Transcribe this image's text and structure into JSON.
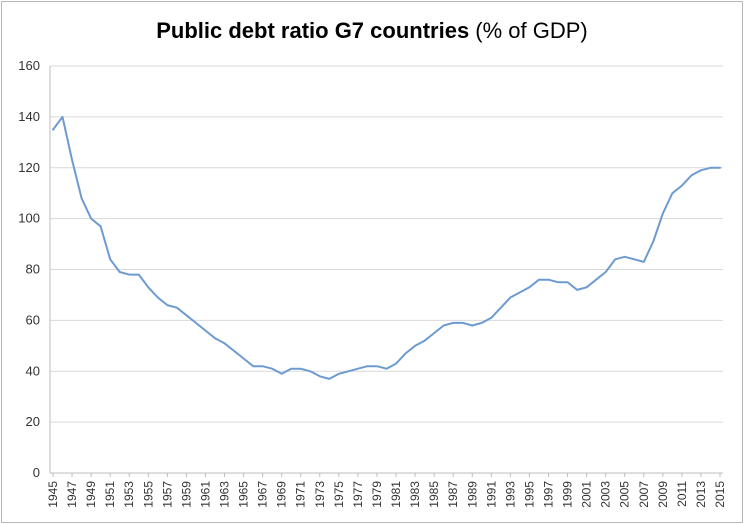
{
  "chart_data": {
    "type": "line",
    "title_bold": "Public debt ratio G7 countries",
    "title_rest": " (% of GDP)",
    "ylim": [
      0,
      160
    ],
    "y_ticks": [
      "0",
      "20",
      "40",
      "60",
      "80",
      "100",
      "120",
      "140",
      "160"
    ],
    "x_ticks": [
      "1945",
      "1947",
      "1949",
      "1951",
      "1953",
      "1955",
      "1957",
      "1959",
      "1961",
      "1963",
      "1965",
      "1967",
      "1969",
      "1971",
      "1973",
      "1975",
      "1977",
      "1979",
      "1981",
      "1983",
      "1985",
      "1987",
      "1989",
      "1991",
      "1993",
      "1995",
      "1997",
      "1999",
      "2001",
      "2003",
      "2005",
      "2007",
      "2009",
      "2011",
      "2013",
      "2015"
    ],
    "grid": true,
    "legend": "none",
    "line_color": "#6d9bd1",
    "series": [
      {
        "x": [
          1945,
          1946,
          1947,
          1948,
          1949,
          1950,
          1951,
          1952,
          1953,
          1954,
          1955,
          1956,
          1957,
          1958,
          1959,
          1960,
          1961,
          1962,
          1963,
          1964,
          1965,
          1966,
          1967,
          1968,
          1969,
          1970,
          1971,
          1972,
          1973,
          1974,
          1975,
          1976,
          1977,
          1978,
          1979,
          1980,
          1981,
          1982,
          1983,
          1984,
          1985,
          1986,
          1987,
          1988,
          1989,
          1990,
          1991,
          1992,
          1993,
          1994,
          1995,
          1996,
          1997,
          1998,
          1999,
          2000,
          2001,
          2002,
          2003,
          2004,
          2005,
          2006,
          2007,
          2008,
          2009,
          2010,
          2011,
          2012,
          2013,
          2014,
          2015
        ],
        "values": [
          135,
          140,
          123,
          108,
          100,
          97,
          84,
          79,
          78,
          78,
          73,
          69,
          66,
          65,
          62,
          59,
          56,
          53,
          51,
          48,
          45,
          42,
          42,
          41,
          39,
          41,
          41,
          40,
          38,
          37,
          39,
          40,
          41,
          42,
          42,
          41,
          43,
          47,
          50,
          52,
          55,
          58,
          59,
          59,
          58,
          59,
          61,
          65,
          69,
          71,
          73,
          76,
          76,
          75,
          75,
          72,
          73,
          76,
          79,
          84,
          85,
          84,
          83,
          91,
          102,
          110,
          113,
          117,
          119,
          120,
          120
        ]
      }
    ]
  }
}
